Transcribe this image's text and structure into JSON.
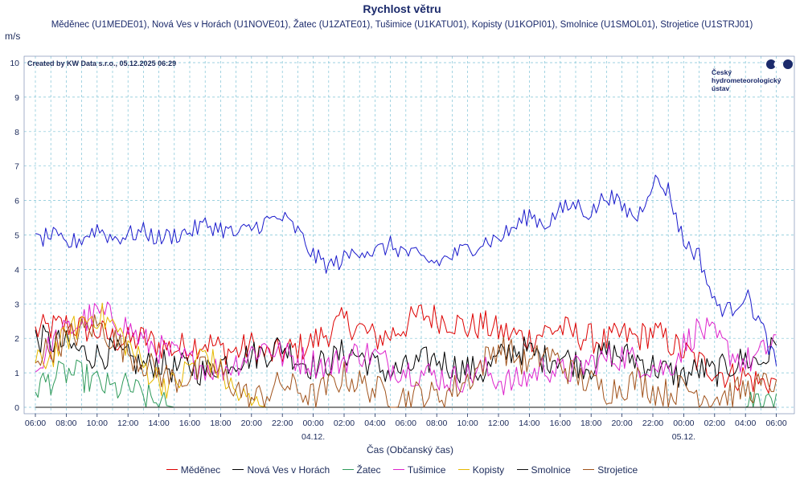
{
  "chart_data": {
    "type": "line",
    "title": "Rychlost větru",
    "subtitle": "Měděnec (U1MEDE01), Nová Ves v Horách (U1NOVE01), Žatec (U1ZATE01), Tušimice (U1KATU01), Kopisty (U1KOPI01), Smolnice (U1SMOL01), Strojetice (U1STRJ01)",
    "ylabel": "m/s",
    "xlabel": "Čas (Občanský čas)",
    "credit": "Created by KW Data s.r.o., 05.12.2025 06:29",
    "logo": [
      "Český",
      "hydrometeorologický",
      "ústav"
    ],
    "ylim": [
      0,
      10
    ],
    "yticks": [
      "0",
      "1",
      "2",
      "3",
      "4",
      "5",
      "6",
      "7",
      "8",
      "9",
      "10"
    ],
    "xlim_hours": [
      -0.5,
      48.0
    ],
    "xticks": [
      "06:00",
      "08:00",
      "10:00",
      "12:00",
      "14:00",
      "16:00",
      "18:00",
      "20:00",
      "22:00",
      "00:00",
      "02:00",
      "04:00",
      "06:00",
      "08:00",
      "10:00",
      "12:00",
      "14:00",
      "16:00",
      "18:00",
      "20:00",
      "22:00",
      "00:00",
      "02:00",
      "04:00",
      "06:00"
    ],
    "date_labels": [
      {
        "label": "04.12.",
        "tick_index": 9
      },
      {
        "label": "05.12.",
        "tick_index": 21
      }
    ],
    "x_hours": [
      0,
      1,
      2,
      3,
      4,
      5,
      6,
      7,
      8,
      9,
      10,
      11,
      12,
      13,
      14,
      15,
      16,
      17,
      18,
      19,
      20,
      21,
      22,
      23,
      24,
      25,
      26,
      27,
      28,
      29,
      30,
      31,
      32,
      33,
      34,
      35,
      36,
      37,
      38,
      39,
      40,
      41,
      42,
      43,
      44,
      45,
      46,
      47,
      48
    ],
    "series": [
      {
        "name": "Měděnec",
        "color": "#dd0000",
        "values": [
          2.2,
          2.3,
          2.4,
          2.3,
          2.2,
          2.0,
          1.9,
          2.0,
          1.8,
          1.7,
          1.8,
          1.9,
          1.7,
          1.6,
          1.8,
          1.5,
          1.6,
          1.7,
          1.9,
          2.2,
          2.5,
          2.3,
          2.0,
          2.1,
          2.4,
          2.7,
          2.6,
          2.5,
          2.3,
          2.4,
          2.2,
          2.1,
          2.0,
          2.2,
          2.3,
          2.1,
          2.0,
          1.9,
          2.1,
          2.0,
          2.2,
          1.9,
          1.6,
          1.3,
          1.1,
          0.9,
          0.9,
          0.7,
          0.8
        ]
      },
      {
        "name": "Nová Ves v Horách",
        "color": "#000000",
        "values": [
          2.0,
          1.9,
          1.8,
          1.6,
          1.5,
          1.6,
          1.4,
          1.2,
          1.3,
          1.1,
          1.2,
          1.0,
          1.3,
          1.4,
          1.5,
          1.6,
          1.8,
          1.4,
          1.2,
          1.3,
          1.6,
          1.5,
          1.2,
          1.0,
          1.1,
          1.3,
          1.4,
          1.2,
          1.1,
          1.0,
          1.4,
          1.7,
          1.6,
          1.4,
          1.5,
          1.3,
          1.2,
          1.6,
          1.5,
          1.4,
          1.2,
          1.0,
          0.9,
          1.1,
          1.0,
          1.2,
          1.4,
          1.3,
          1.8
        ]
      },
      {
        "name": "Žatec",
        "color": "#2e9a5a",
        "values": [
          0.6,
          0.8,
          1.0,
          0.9,
          0.7,
          0.5,
          0.6,
          0.3,
          0.1,
          0.0,
          0.0,
          0.0,
          0.0,
          0.0,
          0.0,
          0.0,
          0.0,
          0.0,
          0.0,
          0.0,
          0.0,
          0.0,
          0.0,
          0.0,
          0.0,
          0.0,
          0.0,
          0.0,
          0.0,
          0.0,
          0.0,
          0.0,
          0.0,
          0.0,
          0.0,
          0.0,
          0.0,
          0.0,
          0.0,
          0.0,
          0.0,
          0.0,
          0.0,
          0.0,
          0.0,
          0.0,
          0.0,
          0.2,
          0.4
        ]
      },
      {
        "name": "Tušimice",
        "color": "#dd22cc",
        "values": [
          1.0,
          1.8,
          2.2,
          2.5,
          2.7,
          2.6,
          2.3,
          1.9,
          1.7,
          1.5,
          1.3,
          1.2,
          1.1,
          1.3,
          1.6,
          1.8,
          1.5,
          1.4,
          1.3,
          1.2,
          1.4,
          1.6,
          1.5,
          1.2,
          1.1,
          1.0,
          0.9,
          0.8,
          0.9,
          1.1,
          0.8,
          0.7,
          0.9,
          1.2,
          1.0,
          1.1,
          1.3,
          1.4,
          1.5,
          1.3,
          1.2,
          1.1,
          1.8,
          2.3,
          2.0,
          1.6,
          1.3,
          1.5,
          2.1
        ]
      },
      {
        "name": "Kopisty",
        "color": "#e6b800",
        "values": [
          1.2,
          1.5,
          2.0,
          2.5,
          2.7,
          2.4,
          1.8,
          1.2,
          0.8,
          0.6,
          1.2,
          1.6,
          1.0,
          0.4,
          0.1,
          0.0,
          0.0,
          0.0,
          0.0,
          0.0,
          0.0,
          0.0,
          0.0,
          0.0,
          0.0,
          0.0,
          0.0,
          0.0,
          0.0,
          0.0,
          0.0,
          0.0,
          0.0,
          0.0,
          0.0,
          0.0,
          0.0,
          0.0,
          0.0,
          0.0,
          0.0,
          0.0,
          0.0,
          0.0,
          0.0,
          0.0,
          0.0,
          0.0,
          0.0
        ]
      },
      {
        "name": "Smolnice",
        "color": "#111111",
        "values": [
          0.0,
          0.0,
          0.0,
          0.0,
          0.0,
          0.0,
          0.0,
          0.0,
          0.0,
          0.0,
          0.0,
          0.0,
          0.0,
          0.0,
          0.0,
          0.0,
          0.0,
          0.0,
          0.0,
          0.0,
          0.0,
          0.0,
          0.0,
          0.0,
          0.0,
          0.0,
          0.0,
          0.0,
          0.0,
          0.0,
          0.0,
          0.0,
          0.0,
          0.0,
          0.0,
          0.0,
          0.0,
          0.0,
          0.0,
          0.0,
          0.0,
          0.0,
          0.0,
          0.0,
          0.0,
          0.0,
          0.0,
          0.0,
          0.0
        ]
      },
      {
        "name": "Strojetice",
        "color": "#a0521b",
        "values": [
          1.5,
          1.7,
          2.0,
          2.2,
          2.4,
          2.0,
          1.6,
          1.3,
          1.0,
          0.8,
          0.9,
          1.1,
          1.0,
          0.6,
          0.2,
          0.4,
          0.7,
          0.5,
          0.3,
          0.6,
          0.9,
          0.7,
          0.5,
          0.4,
          0.3,
          0.4,
          0.3,
          0.5,
          0.8,
          1.3,
          1.8,
          1.5,
          1.2,
          1.6,
          1.3,
          0.9,
          0.7,
          0.5,
          0.6,
          0.8,
          0.5,
          0.4,
          0.6,
          0.4,
          0.3,
          0.4,
          0.5,
          0.6,
          0.8
        ]
      }
    ],
    "main_series": {
      "name": "",
      "color": "#1a1acc",
      "values": [
        4.8,
        5.0,
        4.7,
        4.9,
        5.2,
        4.9,
        5.0,
        5.1,
        4.9,
        5.0,
        5.1,
        5.3,
        5.2,
        5.0,
        5.2,
        5.4,
        5.5,
        5.1,
        4.4,
        4.1,
        4.3,
        4.6,
        4.5,
        4.7,
        4.5,
        4.3,
        4.2,
        4.4,
        4.6,
        4.8,
        4.9,
        5.2,
        5.6,
        5.3,
        5.7,
        5.9,
        5.6,
        6.2,
        5.8,
        5.5,
        6.6,
        6.3,
        4.8,
        4.4,
        3.0,
        2.8,
        3.3,
        2.4,
        1.2
      ]
    }
  },
  "legend": [
    {
      "name": "Měděnec",
      "color": "#dd0000"
    },
    {
      "name": "Nová Ves v Horách",
      "color": "#000000"
    },
    {
      "name": "Žatec",
      "color": "#2e9a5a"
    },
    {
      "name": "Tušimice",
      "color": "#dd22cc"
    },
    {
      "name": "Kopisty",
      "color": "#e6b800"
    },
    {
      "name": "Smolnice",
      "color": "#111111"
    },
    {
      "name": "Strojetice",
      "color": "#a0521b"
    }
  ]
}
